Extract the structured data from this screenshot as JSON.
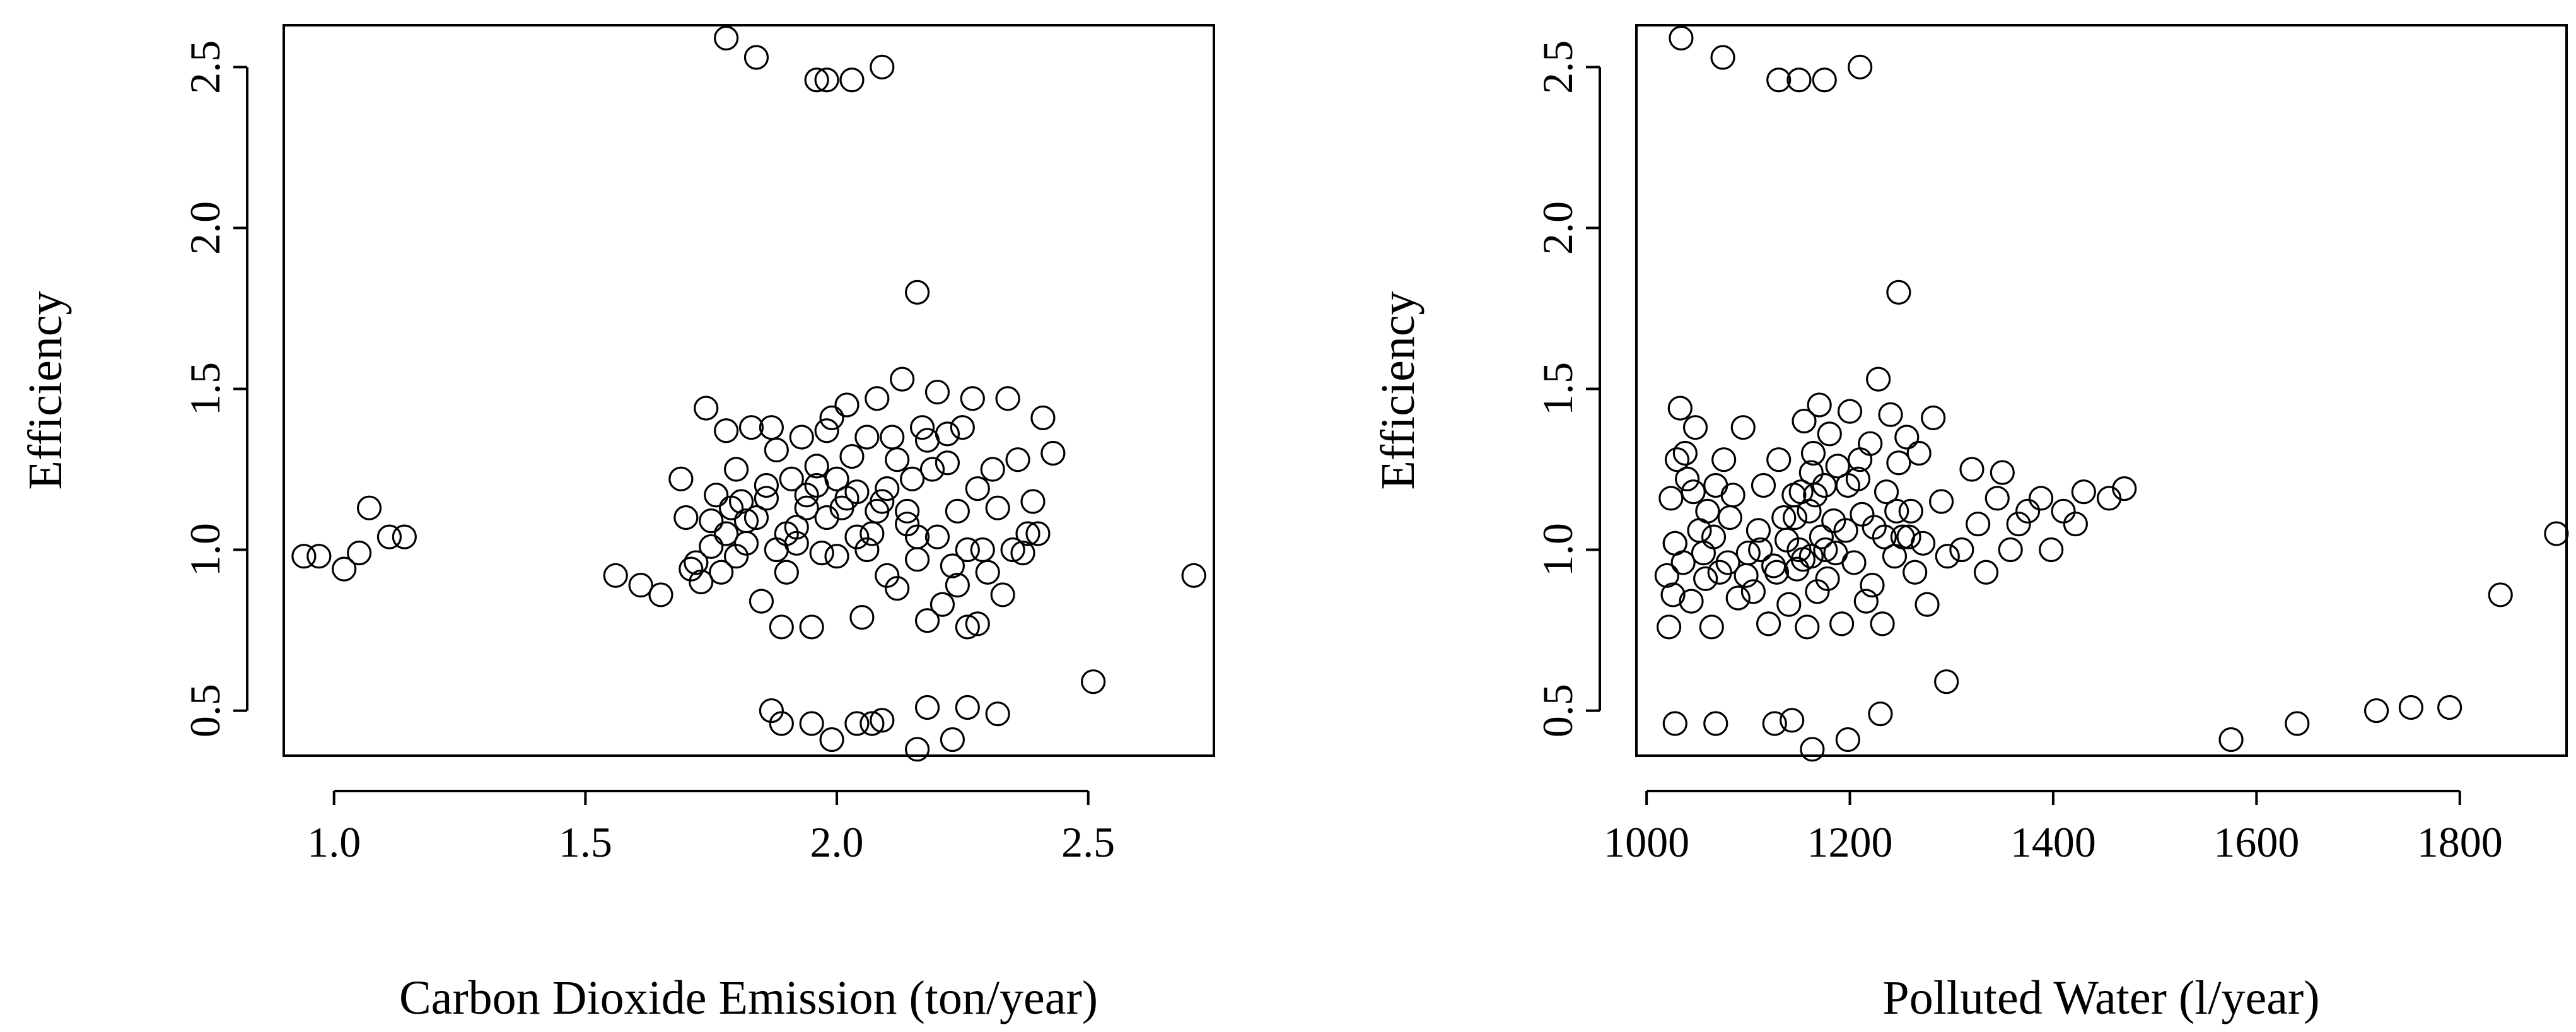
{
  "chart_data": [
    {
      "type": "scatter",
      "title": "",
      "xlabel": "Carbon Dioxide Emission (ton/year)",
      "ylabel": "Efficiency",
      "xlim": [
        0.9,
        2.75
      ],
      "ylim": [
        0.36,
        2.63
      ],
      "xticks": [
        "1.0",
        "1.5",
        "2.0",
        "2.5"
      ],
      "xtick_values": [
        1.0,
        1.5,
        2.0,
        2.5
      ],
      "yticks": [
        "0.5",
        "1.0",
        "1.5",
        "2.0",
        "2.5"
      ],
      "ytick_values": [
        0.5,
        1.0,
        1.5,
        2.0,
        2.5
      ],
      "points": [
        [
          0.94,
          0.98
        ],
        [
          0.97,
          0.98
        ],
        [
          1.02,
          0.94
        ],
        [
          1.05,
          0.99
        ],
        [
          1.07,
          1.13
        ],
        [
          1.11,
          1.04
        ],
        [
          1.14,
          1.04
        ],
        [
          1.78,
          2.59
        ],
        [
          1.84,
          2.53
        ],
        [
          1.96,
          2.46
        ],
        [
          1.98,
          2.46
        ],
        [
          2.03,
          2.46
        ],
        [
          2.09,
          2.5
        ],
        [
          2.16,
          1.8
        ],
        [
          1.56,
          0.92
        ],
        [
          1.61,
          0.89
        ],
        [
          1.65,
          0.86
        ],
        [
          1.69,
          1.22
        ],
        [
          1.71,
          0.94
        ],
        [
          1.72,
          0.96
        ],
        [
          1.73,
          0.9
        ],
        [
          1.74,
          1.44
        ],
        [
          1.75,
          1.01
        ],
        [
          1.76,
          1.17
        ],
        [
          1.77,
          0.93
        ],
        [
          1.78,
          1.37
        ],
        [
          1.79,
          1.13
        ],
        [
          1.8,
          1.25
        ],
        [
          1.81,
          1.15
        ],
        [
          1.82,
          1.02
        ],
        [
          1.83,
          1.38
        ],
        [
          1.84,
          1.1
        ],
        [
          1.85,
          0.84
        ],
        [
          1.86,
          1.2
        ],
        [
          1.87,
          1.38
        ],
        [
          1.88,
          1.31
        ],
        [
          1.89,
          0.76
        ],
        [
          1.9,
          1.05
        ],
        [
          1.91,
          1.22
        ],
        [
          1.92,
          1.02
        ],
        [
          1.93,
          1.35
        ],
        [
          1.94,
          1.17
        ],
        [
          1.95,
          0.76
        ],
        [
          1.96,
          1.2
        ],
        [
          1.97,
          0.99
        ],
        [
          1.98,
          1.1
        ],
        [
          1.99,
          1.41
        ],
        [
          2.0,
          0.98
        ],
        [
          2.01,
          1.13
        ],
        [
          2.02,
          1.45
        ],
        [
          2.03,
          1.29
        ],
        [
          2.04,
          1.04
        ],
        [
          2.05,
          0.79
        ],
        [
          2.06,
          1.35
        ],
        [
          2.07,
          1.05
        ],
        [
          2.08,
          1.47
        ],
        [
          2.09,
          1.15
        ],
        [
          2.1,
          0.92
        ],
        [
          2.11,
          1.35
        ],
        [
          2.12,
          0.88
        ],
        [
          2.13,
          1.53
        ],
        [
          2.14,
          1.08
        ],
        [
          2.15,
          1.22
        ],
        [
          2.16,
          0.97
        ],
        [
          2.17,
          1.38
        ],
        [
          2.18,
          0.78
        ],
        [
          2.19,
          1.25
        ],
        [
          2.2,
          1.49
        ],
        [
          2.21,
          0.83
        ],
        [
          2.22,
          1.27
        ],
        [
          2.23,
          0.95
        ],
        [
          2.24,
          1.12
        ],
        [
          2.25,
          1.38
        ],
        [
          2.26,
          0.76
        ],
        [
          2.27,
          1.47
        ],
        [
          2.28,
          1.19
        ],
        [
          2.29,
          1.0
        ],
        [
          2.3,
          0.93
        ],
        [
          2.31,
          1.25
        ],
        [
          2.32,
          1.13
        ],
        [
          2.33,
          0.86
        ],
        [
          2.34,
          1.47
        ],
        [
          2.35,
          1.0
        ],
        [
          2.36,
          1.28
        ],
        [
          2.37,
          0.99
        ],
        [
          2.38,
          1.05
        ],
        [
          2.39,
          1.15
        ],
        [
          2.4,
          1.05
        ],
        [
          2.41,
          1.41
        ],
        [
          2.43,
          1.3
        ],
        [
          1.7,
          1.1
        ],
        [
          1.75,
          1.09
        ],
        [
          1.78,
          1.05
        ],
        [
          1.8,
          0.98
        ],
        [
          1.82,
          1.09
        ],
        [
          1.86,
          1.16
        ],
        [
          1.88,
          1.0
        ],
        [
          1.9,
          0.93
        ],
        [
          1.92,
          1.07
        ],
        [
          1.94,
          1.13
        ],
        [
          1.96,
          1.26
        ],
        [
          1.98,
          1.37
        ],
        [
          2.0,
          1.22
        ],
        [
          2.02,
          1.16
        ],
        [
          2.04,
          1.18
        ],
        [
          2.06,
          1.0
        ],
        [
          2.08,
          1.12
        ],
        [
          2.1,
          1.19
        ],
        [
          2.12,
          1.28
        ],
        [
          2.14,
          1.12
        ],
        [
          2.16,
          1.04
        ],
        [
          2.18,
          1.34
        ],
        [
          2.2,
          1.04
        ],
        [
          2.22,
          1.36
        ],
        [
          2.24,
          0.89
        ],
        [
          2.26,
          1.0
        ],
        [
          2.28,
          0.77
        ],
        [
          1.87,
          0.5
        ],
        [
          1.89,
          0.46
        ],
        [
          1.95,
          0.46
        ],
        [
          1.99,
          0.41
        ],
        [
          2.04,
          0.46
        ],
        [
          2.07,
          0.46
        ],
        [
          2.09,
          0.47
        ],
        [
          2.16,
          0.38
        ],
        [
          2.18,
          0.51
        ],
        [
          2.23,
          0.41
        ],
        [
          2.26,
          0.51
        ],
        [
          2.32,
          0.49
        ],
        [
          2.51,
          0.59
        ],
        [
          2.71,
          0.92
        ]
      ]
    },
    {
      "type": "scatter",
      "title": "",
      "xlabel": "Polluted Water (l/year)",
      "ylabel": "Efficiency",
      "xlim": [
        990,
        1905
      ],
      "ylim": [
        0.36,
        2.63
      ],
      "xticks": [
        "1000",
        "1200",
        "1400",
        "1600",
        "1800"
      ],
      "xtick_values": [
        1000,
        1200,
        1400,
        1600,
        1800
      ],
      "yticks": [
        "0.5",
        "1.0",
        "1.5",
        "2.0",
        "2.5"
      ],
      "ytick_values": [
        0.5,
        1.0,
        1.5,
        2.0,
        2.5
      ],
      "points": [
        [
          1034,
          2.59
        ],
        [
          1075,
          2.53
        ],
        [
          1130,
          2.46
        ],
        [
          1150,
          2.46
        ],
        [
          1175,
          2.46
        ],
        [
          1210,
          2.5
        ],
        [
          1248,
          1.8
        ],
        [
          1020,
          0.92
        ],
        [
          1022,
          0.76
        ],
        [
          1024,
          1.16
        ],
        [
          1026,
          0.86
        ],
        [
          1028,
          1.02
        ],
        [
          1030,
          1.28
        ],
        [
          1033,
          1.44
        ],
        [
          1036,
          0.96
        ],
        [
          1040,
          1.22
        ],
        [
          1044,
          0.84
        ],
        [
          1048,
          1.38
        ],
        [
          1052,
          1.06
        ],
        [
          1056,
          0.99
        ],
        [
          1060,
          1.12
        ],
        [
          1064,
          0.76
        ],
        [
          1068,
          1.2
        ],
        [
          1072,
          0.93
        ],
        [
          1076,
          1.28
        ],
        [
          1080,
          0.96
        ],
        [
          1085,
          1.17
        ],
        [
          1090,
          0.85
        ],
        [
          1095,
          1.38
        ],
        [
          1100,
          0.99
        ],
        [
          1105,
          0.87
        ],
        [
          1110,
          1.06
        ],
        [
          1115,
          1.2
        ],
        [
          1120,
          0.77
        ],
        [
          1125,
          0.95
        ],
        [
          1130,
          1.28
        ],
        [
          1135,
          1.1
        ],
        [
          1140,
          0.83
        ],
        [
          1145,
          1.17
        ],
        [
          1148,
          0.94
        ],
        [
          1150,
          1.0
        ],
        [
          1152,
          1.18
        ],
        [
          1155,
          1.4
        ],
        [
          1158,
          0.76
        ],
        [
          1160,
          1.12
        ],
        [
          1162,
          0.98
        ],
        [
          1164,
          1.3
        ],
        [
          1166,
          1.17
        ],
        [
          1168,
          0.87
        ],
        [
          1170,
          1.45
        ],
        [
          1172,
          1.04
        ],
        [
          1175,
          1.2
        ],
        [
          1178,
          0.91
        ],
        [
          1180,
          1.36
        ],
        [
          1184,
          1.09
        ],
        [
          1188,
          1.26
        ],
        [
          1192,
          0.77
        ],
        [
          1196,
          1.06
        ],
        [
          1200,
          1.43
        ],
        [
          1204,
          0.96
        ],
        [
          1208,
          1.22
        ],
        [
          1212,
          1.11
        ],
        [
          1216,
          0.84
        ],
        [
          1220,
          1.33
        ],
        [
          1224,
          1.07
        ],
        [
          1228,
          1.53
        ],
        [
          1232,
          0.77
        ],
        [
          1236,
          1.18
        ],
        [
          1240,
          1.42
        ],
        [
          1244,
          0.98
        ],
        [
          1248,
          1.27
        ],
        [
          1252,
          1.04
        ],
        [
          1256,
          1.35
        ],
        [
          1260,
          1.12
        ],
        [
          1264,
          0.93
        ],
        [
          1268,
          1.3
        ],
        [
          1272,
          1.02
        ],
        [
          1276,
          0.83
        ],
        [
          1282,
          1.41
        ],
        [
          1290,
          1.15
        ],
        [
          1296,
          0.98
        ],
        [
          1310,
          1.0
        ],
        [
          1320,
          1.25
        ],
        [
          1326,
          1.08
        ],
        [
          1334,
          0.93
        ],
        [
          1345,
          1.16
        ],
        [
          1350,
          1.24
        ],
        [
          1358,
          1.0
        ],
        [
          1366,
          1.08
        ],
        [
          1375,
          1.12
        ],
        [
          1388,
          1.16
        ],
        [
          1398,
          1.0
        ],
        [
          1410,
          1.12
        ],
        [
          1422,
          1.08
        ],
        [
          1430,
          1.18
        ],
        [
          1455,
          1.16
        ],
        [
          1470,
          1.19
        ],
        [
          1028,
          1.02
        ],
        [
          1038,
          1.3
        ],
        [
          1046,
          1.18
        ],
        [
          1058,
          0.91
        ],
        [
          1066,
          1.04
        ],
        [
          1082,
          1.1
        ],
        [
          1098,
          0.92
        ],
        [
          1112,
          1.0
        ],
        [
          1128,
          0.93
        ],
        [
          1138,
          1.03
        ],
        [
          1146,
          1.1
        ],
        [
          1154,
          0.97
        ],
        [
          1162,
          1.24
        ],
        [
          1176,
          1.0
        ],
        [
          1186,
          0.99
        ],
        [
          1198,
          1.2
        ],
        [
          1210,
          1.28
        ],
        [
          1222,
          0.89
        ],
        [
          1234,
          1.04
        ],
        [
          1246,
          1.12
        ],
        [
          1258,
          1.04
        ],
        [
          1028,
          0.46
        ],
        [
          1068,
          0.46
        ],
        [
          1126,
          0.46
        ],
        [
          1143,
          0.47
        ],
        [
          1163,
          0.38
        ],
        [
          1198,
          0.41
        ],
        [
          1230,
          0.49
        ],
        [
          1295,
          0.59
        ],
        [
          1575,
          0.41
        ],
        [
          1640,
          0.46
        ],
        [
          1718,
          0.5
        ],
        [
          1752,
          0.51
        ],
        [
          1790,
          0.51
        ],
        [
          1840,
          0.86
        ],
        [
          1895,
          1.05
        ]
      ]
    }
  ]
}
